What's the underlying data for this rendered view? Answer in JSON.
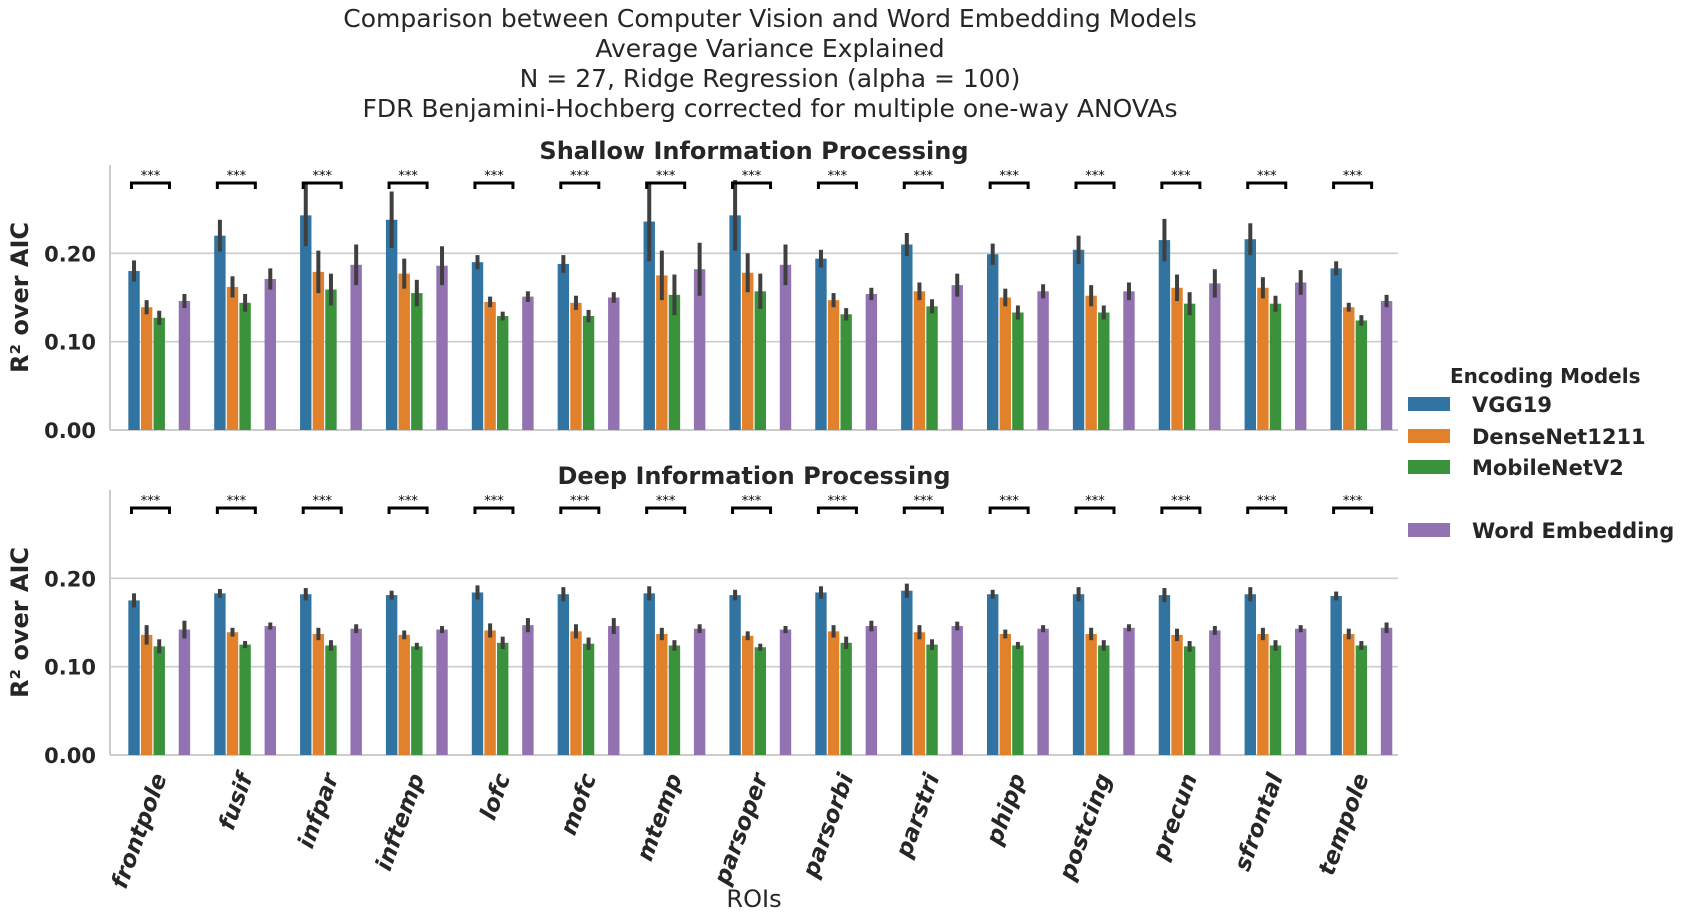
{
  "chart_data": {
    "type": "bar",
    "suptitle": [
      "Comparison between Computer Vision and Word Embedding Models",
      "Average Variance Explained",
      "N = 27, Ridge Regression (alpha = 100)",
      "FDR Benjamini-Hochberg corrected for multiple one-way ANOVAs"
    ],
    "xlabel": "ROIs",
    "ylabel": "R² over AIC",
    "ylim": [
      0,
      0.3
    ],
    "yticks": [
      "0.00",
      "0.10",
      "0.20"
    ],
    "categories": [
      "frontpole",
      "fusif",
      "infpar",
      "inftemp",
      "lofc",
      "mofc",
      "mtemp",
      "parsoper",
      "parsorbi",
      "parstri",
      "phipp",
      "postcing",
      "precun",
      "sfrontal",
      "tempole"
    ],
    "significance_label": "***",
    "legend": {
      "title": "Encoding Models",
      "placement": "right",
      "entries": [
        "VGG19",
        "DenseNet1211",
        "MobileNetV2",
        "Word Embedding"
      ]
    },
    "colors": {
      "VGG19": "#3274a1",
      "DenseNet1211": "#e1812c",
      "MobileNetV2": "#3a923a",
      "Word Embedding": "#9372b2",
      "error_bar": "#3f3f3f",
      "grid": "#cccccc"
    },
    "panels": [
      {
        "title": "Shallow Information Processing",
        "series": [
          {
            "name": "VGG19",
            "values": [
              0.18,
              0.22,
              0.243,
              0.238,
              0.19,
              0.188,
              0.236,
              0.243,
              0.194,
              0.21,
              0.199,
              0.204,
              0.215,
              0.216,
              0.183
            ],
            "err": [
              0.012,
              0.018,
              0.035,
              0.032,
              0.008,
              0.01,
              0.045,
              0.04,
              0.01,
              0.013,
              0.012,
              0.016,
              0.024,
              0.018,
              0.008
            ]
          },
          {
            "name": "DenseNet1211",
            "values": [
              0.139,
              0.162,
              0.179,
              0.177,
              0.145,
              0.144,
              0.175,
              0.178,
              0.147,
              0.157,
              0.15,
              0.152,
              0.161,
              0.161,
              0.139
            ],
            "err": [
              0.008,
              0.012,
              0.024,
              0.017,
              0.006,
              0.008,
              0.028,
              0.022,
              0.008,
              0.01,
              0.01,
              0.012,
              0.015,
              0.012,
              0.005
            ]
          },
          {
            "name": "MobileNetV2",
            "values": [
              0.127,
              0.144,
              0.159,
              0.155,
              0.129,
              0.129,
              0.153,
              0.157,
              0.131,
              0.14,
              0.133,
              0.133,
              0.143,
              0.143,
              0.124
            ],
            "err": [
              0.008,
              0.01,
              0.018,
              0.015,
              0.005,
              0.007,
              0.023,
              0.02,
              0.007,
              0.008,
              0.008,
              0.008,
              0.013,
              0.009,
              0.006
            ]
          },
          {
            "name": "Word Embedding",
            "values": [
              0.146,
              0.171,
              0.187,
              0.186,
              0.151,
              0.15,
              0.182,
              0.187,
              0.154,
              0.164,
              0.157,
              0.157,
              0.166,
              0.167,
              0.146
            ],
            "err": [
              0.008,
              0.012,
              0.023,
              0.022,
              0.006,
              0.006,
              0.03,
              0.023,
              0.007,
              0.013,
              0.008,
              0.01,
              0.016,
              0.014,
              0.007
            ]
          }
        ]
      },
      {
        "title": "Deep Information Processing",
        "series": [
          {
            "name": "VGG19",
            "values": [
              0.175,
              0.183,
              0.182,
              0.181,
              0.184,
              0.182,
              0.183,
              0.181,
              0.184,
              0.186,
              0.182,
              0.182,
              0.181,
              0.182,
              0.18
            ],
            "err": [
              0.008,
              0.005,
              0.007,
              0.005,
              0.008,
              0.008,
              0.008,
              0.006,
              0.007,
              0.008,
              0.005,
              0.008,
              0.008,
              0.008,
              0.005
            ]
          },
          {
            "name": "DenseNet1211",
            "values": [
              0.136,
              0.139,
              0.137,
              0.136,
              0.141,
              0.14,
              0.137,
              0.135,
              0.14,
              0.139,
              0.137,
              0.137,
              0.136,
              0.137,
              0.137
            ],
            "err": [
              0.011,
              0.005,
              0.007,
              0.005,
              0.008,
              0.008,
              0.007,
              0.005,
              0.007,
              0.008,
              0.005,
              0.007,
              0.007,
              0.007,
              0.006
            ]
          },
          {
            "name": "MobileNetV2",
            "values": [
              0.123,
              0.125,
              0.124,
              0.123,
              0.127,
              0.126,
              0.124,
              0.122,
              0.127,
              0.125,
              0.124,
              0.124,
              0.123,
              0.124,
              0.124
            ],
            "err": [
              0.008,
              0.004,
              0.006,
              0.004,
              0.007,
              0.007,
              0.006,
              0.004,
              0.007,
              0.006,
              0.004,
              0.006,
              0.006,
              0.006,
              0.005
            ]
          },
          {
            "name": "Word Embedding",
            "values": [
              0.142,
              0.146,
              0.143,
              0.142,
              0.147,
              0.146,
              0.143,
              0.142,
              0.146,
              0.146,
              0.143,
              0.144,
              0.141,
              0.143,
              0.144
            ],
            "err": [
              0.01,
              0.004,
              0.005,
              0.004,
              0.008,
              0.009,
              0.005,
              0.004,
              0.006,
              0.005,
              0.004,
              0.004,
              0.005,
              0.004,
              0.006
            ]
          }
        ]
      }
    ]
  }
}
